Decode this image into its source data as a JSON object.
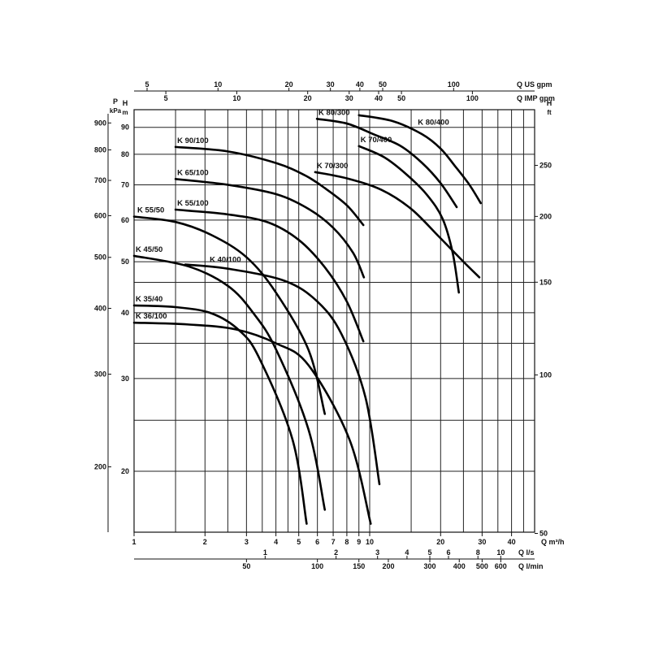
{
  "chart_data": {
    "type": "line",
    "title": "",
    "x_scale": "log",
    "y_scale": "log",
    "grid": true,
    "xlim": [
      1,
      50
    ],
    "ylim": [
      15.3,
      97
    ],
    "x_axes": {
      "m3h": {
        "label": "Q m³/h",
        "ticks": [
          1,
          2,
          3,
          4,
          5,
          6,
          7,
          8,
          9,
          10,
          20,
          30,
          40
        ]
      },
      "ls": {
        "label": "Q l/s",
        "ticks": [
          1,
          2,
          3,
          4,
          5,
          6,
          8,
          10
        ]
      },
      "lmin": {
        "label": "Q l/min",
        "ticks": [
          50,
          100,
          150,
          200,
          300,
          400,
          500,
          600
        ]
      },
      "us_gpm": {
        "label": "Q US gpm",
        "ticks": [
          5,
          10,
          20,
          30,
          40,
          50,
          100
        ]
      },
      "imp_gpm": {
        "label": "Q IMP gpm",
        "ticks": [
          5,
          10,
          20,
          30,
          40,
          50,
          100
        ]
      }
    },
    "y_axes": {
      "kpa": {
        "label_top": "P",
        "label": "kPa",
        "ticks": [
          200,
          300,
          400,
          500,
          600,
          700,
          800,
          900
        ]
      },
      "m": {
        "label_top": "H",
        "label": "m",
        "ticks": [
          20,
          30,
          40,
          50,
          60,
          70,
          80,
          90
        ]
      },
      "ft": {
        "label_top": "H",
        "label": "ft",
        "ticks": [
          50,
          100,
          150,
          200,
          250
        ]
      }
    },
    "xlabel": "Q m³/h",
    "ylabel": "H m",
    "series": [
      {
        "name": "K 80/400",
        "x": [
          9.0,
          12.5,
          16.7,
          20.0,
          23.0,
          26.5,
          29.6
        ],
        "y": [
          94.9,
          92.5,
          87.3,
          82.0,
          76.0,
          70.0,
          64.6
        ]
      },
      {
        "name": "K 80/300",
        "x": [
          5.97,
          8.0,
          10.4,
          13.5,
          16.7,
          20.0,
          23.4
        ],
        "y": [
          93.4,
          91.5,
          87.3,
          83.0,
          77.0,
          70.5,
          63.5
        ]
      },
      {
        "name": "K 70/400",
        "x": [
          9.0,
          11.5,
          14.3,
          17.5,
          20.4,
          22.5,
          23.9
        ],
        "y": [
          82.9,
          79.0,
          73.3,
          67.0,
          60.3,
          52.0,
          43.7
        ]
      },
      {
        "name": "K 90/100",
        "x": [
          1.5,
          2.5,
          4.0,
          5.3,
          6.45,
          8.0,
          9.4
        ],
        "y": [
          82.6,
          81.0,
          77.0,
          73.0,
          69.0,
          64.0,
          58.7
        ]
      },
      {
        "name": "K 70/300",
        "x": [
          5.87,
          8.0,
          11.2,
          15.0,
          19.6,
          25.0,
          29.2
        ],
        "y": [
          74.0,
          72.0,
          68.5,
          63.0,
          55.9,
          50.0,
          46.7
        ]
      },
      {
        "name": "K 65/100",
        "x": [
          1.5,
          2.5,
          4.0,
          5.5,
          7.0,
          8.5,
          9.45
        ],
        "y": [
          71.8,
          70.0,
          67.2,
          63.0,
          58.0,
          52.0,
          46.7
        ]
      },
      {
        "name": "K 55/100",
        "x": [
          1.5,
          2.5,
          3.7,
          5.0,
          6.45,
          8.0,
          9.4
        ],
        "y": [
          62.8,
          61.5,
          59.4,
          55.0,
          48.8,
          42.0,
          35.3
        ]
      },
      {
        "name": "K 55/50",
        "x": [
          1.0,
          1.5,
          2.13,
          3.0,
          4.0,
          5.5,
          6.45
        ],
        "y": [
          60.9,
          59.5,
          56.2,
          51.0,
          43.7,
          34.0,
          25.7
        ]
      },
      {
        "name": "K 45/50",
        "x": [
          1.0,
          1.7,
          2.5,
          3.2,
          4.0,
          5.5,
          6.45
        ],
        "y": [
          51.3,
          49.0,
          45.0,
          40.0,
          34.1,
          24.0,
          16.9
        ]
      },
      {
        "name": "K 40/100",
        "x": [
          1.65,
          2.5,
          4.35,
          6.0,
          7.6,
          9.6,
          11.0
        ],
        "y": [
          49.4,
          48.5,
          46.0,
          42.0,
          36.4,
          27.6,
          18.9
        ]
      },
      {
        "name": "K 35/40",
        "x": [
          1.0,
          1.5,
          2.13,
          2.8,
          3.4,
          4.7,
          5.4
        ],
        "y": [
          41.3,
          41.0,
          39.9,
          37.0,
          32.8,
          23.0,
          15.9
        ]
      },
      {
        "name": "K 36/100",
        "x": [
          1.0,
          1.7,
          2.7,
          4.0,
          5.5,
          8.2,
          10.1
        ],
        "y": [
          38.3,
          38.0,
          37.2,
          35.0,
          31.8,
          23.0,
          15.9
        ]
      }
    ],
    "legend": "labels on curves"
  }
}
